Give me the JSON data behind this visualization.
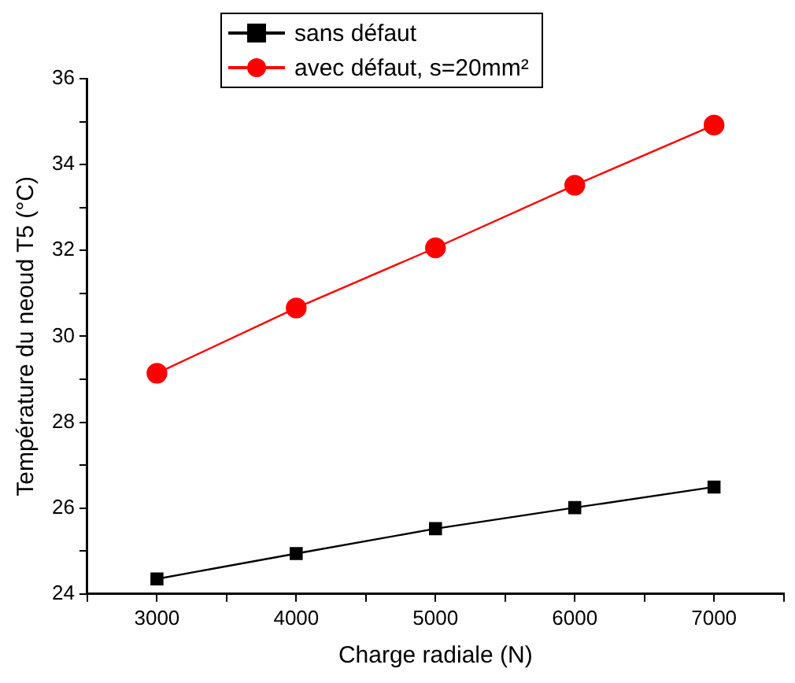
{
  "chart_data": {
    "type": "line",
    "xlabel": "Charge radiale (N)",
    "ylabel": "Température du neoud T5 (°C)",
    "x": [
      3000,
      4000,
      5000,
      6000,
      7000
    ],
    "series": [
      {
        "name": "sans défaut",
        "color": "#000000",
        "marker": "square",
        "values": [
          24.35,
          24.94,
          25.52,
          26.01,
          26.49
        ]
      },
      {
        "name": "avec défaut, s=20mm²",
        "color": "#ff0000",
        "marker": "circle",
        "values": [
          29.14,
          30.66,
          32.06,
          33.52,
          34.92
        ]
      }
    ],
    "xlim": [
      2500,
      7500
    ],
    "xticks": [
      {
        "value": 2500,
        "label": null
      },
      3000,
      {
        "value": 3500,
        "label": null
      },
      4000,
      {
        "value": 4500,
        "label": null
      },
      5000,
      {
        "value": 5500,
        "label": null
      },
      6000,
      {
        "value": 6500,
        "label": null
      },
      7000,
      {
        "value": 7500,
        "label": null
      }
    ],
    "ylim": [
      24,
      36
    ],
    "yticks": [
      24,
      {
        "value": 25,
        "label": null
      },
      26,
      {
        "value": 27,
        "label": null
      },
      28,
      {
        "value": 29,
        "label": null
      },
      30,
      {
        "value": 31,
        "label": null
      },
      32,
      {
        "value": 33,
        "label": null
      },
      34,
      {
        "value": 35,
        "label": null
      },
      36
    ],
    "grid": false,
    "legend": "top"
  }
}
